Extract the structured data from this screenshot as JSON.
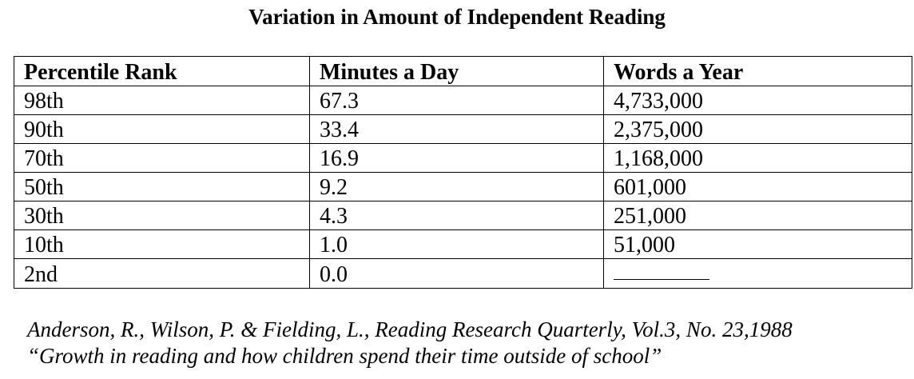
{
  "title": "Variation in Amount of Independent Reading",
  "table": {
    "headers": [
      "Percentile Rank",
      "Minutes a Day",
      "Words a Year"
    ],
    "rows": [
      [
        "98th",
        "67.3",
        "4,733,000"
      ],
      [
        "90th",
        "33.4",
        "2,375,000"
      ],
      [
        "70th",
        "16.9",
        "1,168,000"
      ],
      [
        "50th",
        "9.2",
        "601,000"
      ],
      [
        "30th",
        "4.3",
        "251,000"
      ],
      [
        "10th",
        "1.0",
        "51,000"
      ],
      [
        "2nd",
        "0.0",
        ""
      ]
    ]
  },
  "citation": {
    "line1": "Anderson, R., Wilson, P. & Fielding, L., Reading Research Quarterly, Vol.3, No. 23,1988",
    "line2": "“Growth in reading and how children spend their time outside of school”"
  }
}
